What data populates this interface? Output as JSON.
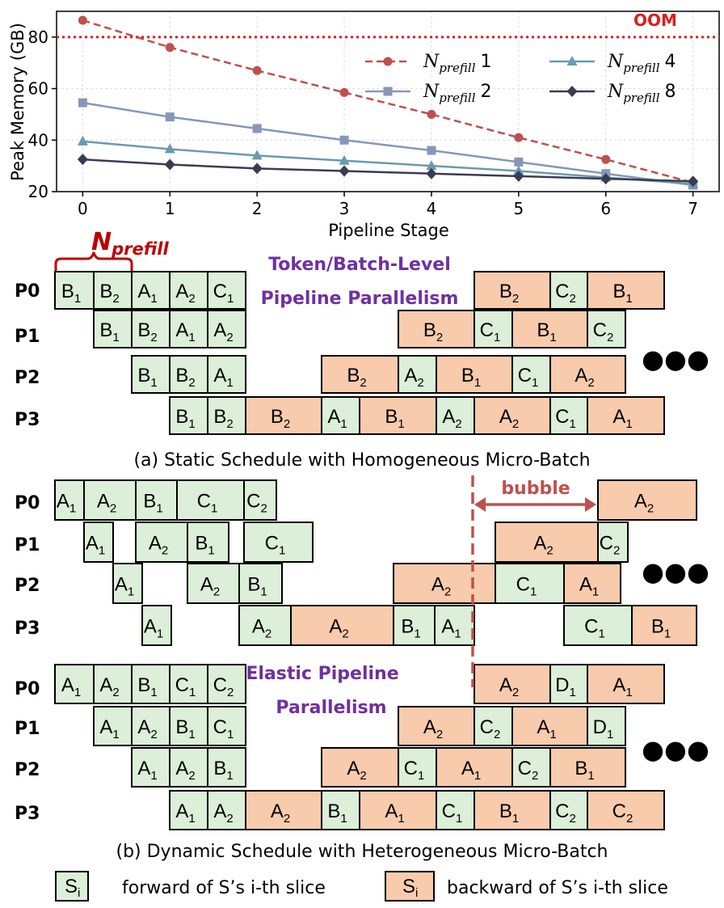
{
  "chart_data": {
    "type": "line",
    "xlabel": "Pipeline Stage",
    "ylabel": "Peak Memory (GB)",
    "x": [
      0,
      1,
      2,
      3,
      4,
      5,
      6,
      7
    ],
    "xticks": [
      "0",
      "1",
      "2",
      "3",
      "4",
      "5",
      "6",
      "7"
    ],
    "yticks": [
      "20",
      "40",
      "60",
      "80"
    ],
    "ylim": [
      20,
      90
    ],
    "xlim": [
      -0.3,
      7.3
    ],
    "grid": true,
    "legend_placement": "upper-right",
    "oom_line": {
      "value": 80,
      "label": "OOM",
      "color": "#e01c1c"
    },
    "series": [
      {
        "name_main": "N",
        "name_sub": "prefill",
        "name_num": "1",
        "color": "#c0504d",
        "marker": "circle",
        "dashed": true,
        "values": [
          86.5,
          76,
          67,
          58.5,
          50,
          41,
          32.5,
          23.5
        ]
      },
      {
        "name_main": "N",
        "name_sub": "prefill",
        "name_num": "2",
        "color": "#8797b8",
        "marker": "square",
        "dashed": false,
        "values": [
          54.5,
          49,
          44.5,
          40,
          36,
          31.5,
          27,
          22.5
        ]
      },
      {
        "name_main": "N",
        "name_sub": "prefill",
        "name_num": "4",
        "color": "#6a9aad",
        "marker": "triangle",
        "dashed": false,
        "values": [
          39.5,
          36.5,
          34,
          32,
          30,
          28,
          25.5,
          23
        ]
      },
      {
        "name_main": "N",
        "name_sub": "prefill",
        "name_num": "8",
        "color": "#3b3b55",
        "marker": "diamond",
        "dashed": false,
        "values": [
          32.5,
          30.5,
          29,
          28,
          27,
          26,
          25,
          24
        ]
      }
    ]
  },
  "diagram": {
    "row_labels": [
      "P0",
      "P1",
      "P2",
      "P3"
    ],
    "colors": {
      "forward": "#dcefd8",
      "backward": "#f8cbad",
      "border": "#000000",
      "purple": "#7030a0",
      "nprefill": "#c00000",
      "bubble": "#c0504d"
    },
    "nprefill_label": {
      "main": "N",
      "sub": "prefill"
    },
    "static_title": [
      "Token/Batch-Level",
      "Pipeline Parallelism"
    ],
    "elastic_title": [
      "Elastic Pipeline",
      "Parallelism"
    ],
    "bubble_label": "bubble",
    "ellipsis": "●●●",
    "caption_a": "(a) Static Schedule with Homogeneous Micro-Batch",
    "caption_b": "(b) Dynamic Schedule with Heterogeneous Micro-Batch",
    "legend": {
      "forward_symbol": "S",
      "forward_sub": "i",
      "forward_text": "forward of  S’s i-th slice",
      "backward_symbol": "S",
      "backward_sub": "i",
      "backward_text": "backward of  S’s i-th slice"
    },
    "static_rows": [
      [
        [
          "f",
          "B",
          "1"
        ],
        [
          "f",
          "B",
          "2"
        ],
        [
          "f",
          "A",
          "1"
        ],
        [
          "f",
          "A",
          "2"
        ],
        [
          "f",
          "C",
          "1"
        ],
        [
          "b",
          "B",
          "2"
        ],
        [
          "f",
          "C",
          "2"
        ],
        [
          "b",
          "B",
          "1"
        ]
      ],
      [
        [
          "f",
          "B",
          "1"
        ],
        [
          "f",
          "B",
          "2"
        ],
        [
          "f",
          "A",
          "1"
        ],
        [
          "f",
          "A",
          "2"
        ],
        [
          "b",
          "B",
          "2"
        ],
        [
          "f",
          "C",
          "1"
        ],
        [
          "b",
          "B",
          "1"
        ],
        [
          "f",
          "C",
          "2"
        ]
      ],
      [
        [
          "f",
          "B",
          "1"
        ],
        [
          "f",
          "B",
          "2"
        ],
        [
          "f",
          "A",
          "1"
        ],
        [
          "b",
          "B",
          "2"
        ],
        [
          "f",
          "A",
          "2"
        ],
        [
          "b",
          "B",
          "1"
        ],
        [
          "f",
          "C",
          "1"
        ],
        [
          "b",
          "A",
          "2"
        ]
      ],
      [
        [
          "f",
          "B",
          "1"
        ],
        [
          "f",
          "B",
          "2"
        ],
        [
          "b",
          "B",
          "2"
        ],
        [
          "f",
          "A",
          "1"
        ],
        [
          "b",
          "B",
          "1"
        ],
        [
          "f",
          "A",
          "2"
        ],
        [
          "b",
          "A",
          "2"
        ],
        [
          "f",
          "C",
          "1"
        ],
        [
          "b",
          "A",
          "1"
        ]
      ]
    ],
    "dynamic_rows": [
      [
        [
          "f",
          "A",
          "1"
        ],
        [
          "f",
          "A",
          "2"
        ],
        [
          "f",
          "B",
          "1"
        ],
        [
          "f",
          "C",
          "1"
        ],
        [
          "f",
          "C",
          "2"
        ],
        [
          "b",
          "A",
          "2"
        ]
      ],
      [
        [
          "f",
          "A",
          "1"
        ],
        [
          "f",
          "A",
          "2"
        ],
        [
          "f",
          "B",
          "1"
        ],
        [
          "f",
          "C",
          "1"
        ],
        [
          "b",
          "A",
          "2"
        ],
        [
          "f",
          "C",
          "2"
        ]
      ],
      [
        [
          "f",
          "A",
          "1"
        ],
        [
          "f",
          "A",
          "2"
        ],
        [
          "f",
          "B",
          "1"
        ],
        [
          "b",
          "A",
          "2"
        ],
        [
          "f",
          "C",
          "1"
        ],
        [
          "b",
          "A",
          "1"
        ]
      ],
      [
        [
          "f",
          "A",
          "1"
        ],
        [
          "f",
          "A",
          "2"
        ],
        [
          "b",
          "A",
          "2"
        ],
        [
          "f",
          "B",
          "1"
        ],
        [
          "f",
          "A",
          "1"
        ],
        [
          "f",
          "C",
          "1"
        ],
        [
          "b",
          "B",
          "1"
        ]
      ]
    ],
    "elastic_rows": [
      [
        [
          "f",
          "A",
          "1"
        ],
        [
          "f",
          "A",
          "2"
        ],
        [
          "f",
          "B",
          "1"
        ],
        [
          "f",
          "C",
          "1"
        ],
        [
          "f",
          "C",
          "2"
        ],
        [
          "b",
          "A",
          "2"
        ],
        [
          "f",
          "D",
          "1"
        ],
        [
          "b",
          "A",
          "1"
        ]
      ],
      [
        [
          "f",
          "A",
          "1"
        ],
        [
          "f",
          "A",
          "2"
        ],
        [
          "f",
          "B",
          "1"
        ],
        [
          "f",
          "C",
          "1"
        ],
        [
          "b",
          "A",
          "2"
        ],
        [
          "f",
          "C",
          "2"
        ],
        [
          "b",
          "A",
          "1"
        ],
        [
          "f",
          "D",
          "1"
        ]
      ],
      [
        [
          "f",
          "A",
          "1"
        ],
        [
          "f",
          "A",
          "2"
        ],
        [
          "f",
          "B",
          "1"
        ],
        [
          "b",
          "A",
          "2"
        ],
        [
          "f",
          "C",
          "1"
        ],
        [
          "b",
          "A",
          "1"
        ],
        [
          "f",
          "C",
          "2"
        ],
        [
          "b",
          "B",
          "1"
        ]
      ],
      [
        [
          "f",
          "A",
          "1"
        ],
        [
          "f",
          "A",
          "2"
        ],
        [
          "b",
          "A",
          "2"
        ],
        [
          "f",
          "B",
          "1"
        ],
        [
          "b",
          "A",
          "1"
        ],
        [
          "f",
          "C",
          "1"
        ],
        [
          "b",
          "B",
          "1"
        ],
        [
          "f",
          "C",
          "2"
        ],
        [
          "b",
          "C",
          "2"
        ]
      ]
    ]
  }
}
